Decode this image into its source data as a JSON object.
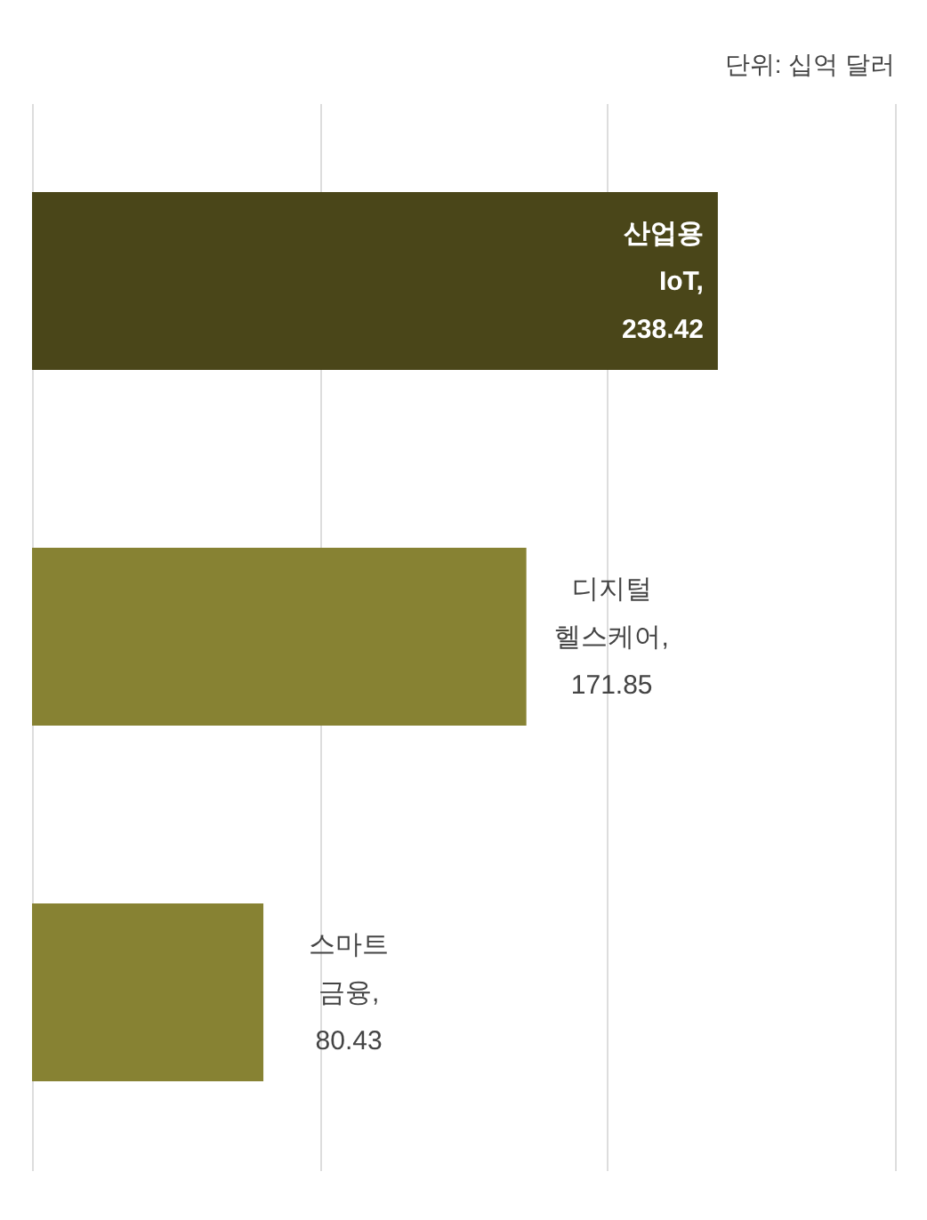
{
  "chart_data": {
    "type": "bar",
    "orientation": "horizontal",
    "categories": [
      null,
      null,
      null
    ],
    "values": [
      238.42,
      171.85,
      80.43
    ],
    "colors": [
      "#4a4619",
      "#878233",
      "#878233"
    ],
    "xlim": [
      0,
      300
    ],
    "xticks": [
      {
        "value": 0,
        "label": null
      },
      {
        "value": 100,
        "label": null
      },
      {
        "value": 200,
        "label": null
      },
      {
        "value": 300,
        "label": null
      }
    ],
    "value_labels": [
      "산업용 IoT, 238.42",
      "디지털 헬스케어, 171.85",
      "스마트 금융, 80.43"
    ],
    "tick_labels": false,
    "grid": "x",
    "annotations": [
      "단위: 십억 달러"
    ]
  }
}
